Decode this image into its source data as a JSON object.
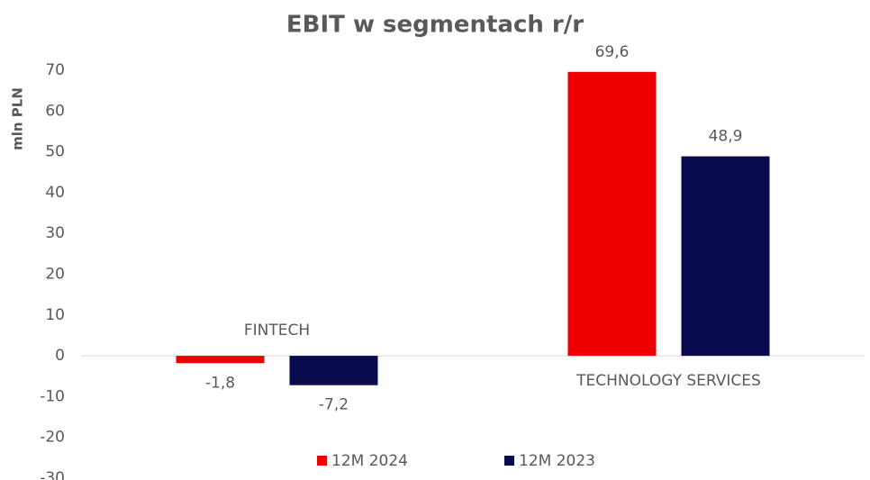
{
  "chart_data": {
    "type": "bar",
    "title": "EBIT w segmentach r/r",
    "y_label": "mln PLN",
    "categories": [
      "FINTECH",
      "TECHNOLOGY SERVICES"
    ],
    "series": [
      {
        "name": "12M 2024",
        "color": "#ee0000",
        "values": [
          -1.8,
          69.6
        ],
        "value_labels": [
          "-1,8",
          "69,6"
        ]
      },
      {
        "name": "12M 2023",
        "color": "#0a0a4e",
        "values": [
          -7.2,
          48.9
        ],
        "value_labels": [
          "-7,2",
          "48,9"
        ]
      }
    ],
    "ylim": [
      -30,
      70
    ],
    "yticks": [
      -30,
      -20,
      -10,
      0,
      10,
      20,
      30,
      40,
      50,
      60,
      70
    ],
    "grid": false,
    "legend": "bottom"
  }
}
